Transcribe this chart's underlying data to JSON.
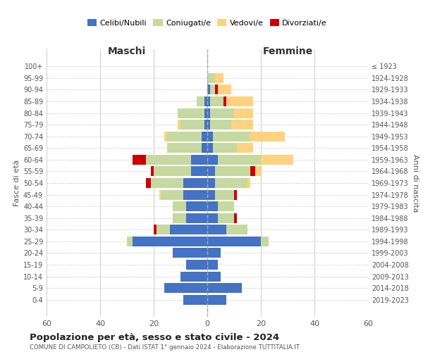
{
  "age_groups": [
    "0-4",
    "5-9",
    "10-14",
    "15-19",
    "20-24",
    "25-29",
    "30-34",
    "35-39",
    "40-44",
    "45-49",
    "50-54",
    "55-59",
    "60-64",
    "65-69",
    "70-74",
    "75-79",
    "80-84",
    "85-89",
    "90-94",
    "95-99",
    "100+"
  ],
  "birth_years": [
    "2019-2023",
    "2014-2018",
    "2009-2013",
    "2004-2008",
    "1999-2003",
    "1994-1998",
    "1989-1993",
    "1984-1988",
    "1979-1983",
    "1974-1978",
    "1969-1973",
    "1964-1968",
    "1959-1963",
    "1954-1958",
    "1949-1953",
    "1944-1948",
    "1939-1943",
    "1934-1938",
    "1929-1933",
    "1924-1928",
    "≤ 1923"
  ],
  "maschi": {
    "celibi": [
      9,
      16,
      10,
      8,
      13,
      28,
      14,
      8,
      8,
      9,
      9,
      6,
      6,
      2,
      2,
      1,
      1,
      1,
      0,
      0,
      0
    ],
    "coniugati": [
      0,
      0,
      0,
      0,
      0,
      2,
      5,
      5,
      5,
      8,
      12,
      14,
      17,
      13,
      13,
      9,
      10,
      3,
      0,
      0,
      0
    ],
    "vedovi": [
      0,
      0,
      0,
      0,
      0,
      0,
      0,
      0,
      0,
      1,
      0,
      0,
      0,
      0,
      1,
      1,
      0,
      0,
      0,
      0,
      0
    ],
    "divorziati": [
      0,
      0,
      0,
      0,
      0,
      0,
      1,
      0,
      0,
      0,
      2,
      1,
      5,
      0,
      0,
      0,
      0,
      0,
      0,
      0,
      0
    ]
  },
  "femmine": {
    "nubili": [
      7,
      13,
      5,
      4,
      5,
      20,
      7,
      4,
      4,
      3,
      3,
      3,
      4,
      2,
      2,
      1,
      1,
      1,
      1,
      0,
      0
    ],
    "coniugate": [
      0,
      0,
      0,
      0,
      0,
      3,
      8,
      6,
      6,
      7,
      12,
      13,
      16,
      9,
      14,
      8,
      9,
      5,
      2,
      3,
      0
    ],
    "vedove": [
      0,
      0,
      0,
      0,
      0,
      0,
      0,
      0,
      0,
      0,
      1,
      2,
      12,
      6,
      13,
      8,
      7,
      10,
      5,
      3,
      0
    ],
    "divorziate": [
      0,
      0,
      0,
      0,
      0,
      0,
      0,
      1,
      0,
      1,
      0,
      2,
      0,
      0,
      0,
      0,
      0,
      1,
      1,
      0,
      0
    ]
  },
  "colors": {
    "celibi_nubili": "#4472C4",
    "coniugati": "#C5D9A0",
    "vedovi": "#FFD280",
    "divorziati": "#CC0000"
  },
  "title": "Popolazione per età, sesso e stato civile - 2024",
  "subtitle": "COMUNE DI CAMPOLIETO (CB) - Dati ISTAT 1° gennaio 2024 - Elaborazione TUTTITALIA.IT",
  "xlabel_left": "Maschi",
  "xlabel_right": "Femmine",
  "ylabel_left": "Fasce di età",
  "ylabel_right": "Anni di nascita",
  "xlim": 60,
  "legend_labels": [
    "Celibi/Nubili",
    "Coniugati/e",
    "Vedovi/e",
    "Divorziati/e"
  ],
  "bg_color": "#ffffff",
  "grid_color": "#cccccc"
}
